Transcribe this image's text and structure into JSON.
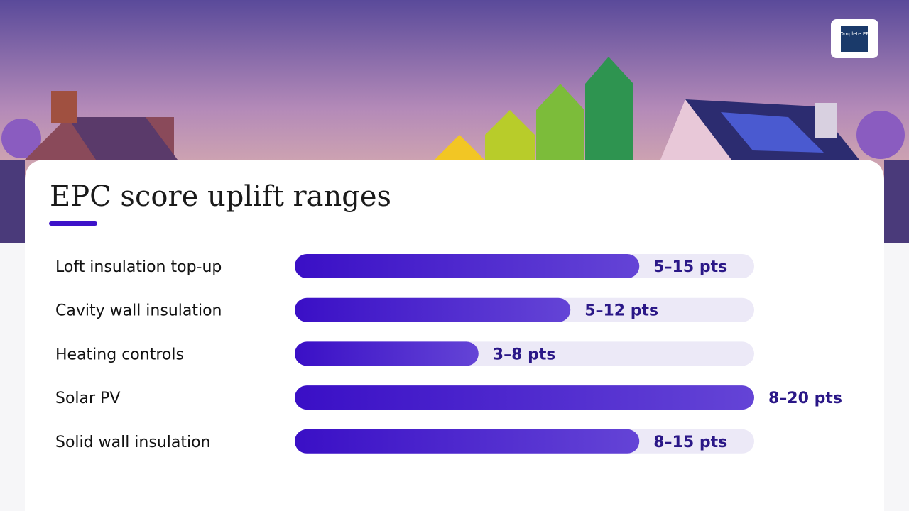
{
  "chart_data": {
    "type": "range-bar",
    "title": "EPC score uplift ranges",
    "logo": "COmplete EPC",
    "categories": [
      "Loft insulation top-up",
      "Cavity wall insulation",
      "Heating controls",
      "Solar PV",
      "Solid wall insulation"
    ],
    "values": [
      [
        5,
        15
      ],
      [
        5,
        12
      ],
      [
        3,
        8
      ],
      [
        8,
        20
      ],
      [
        8,
        15
      ]
    ],
    "value_labels": [
      "5–15 pts",
      "5–12 pts",
      "3–8 pts",
      "8–20 pts",
      "8–15 pts"
    ],
    "xlim": [
      0,
      20
    ],
    "color": "#3d12c9"
  }
}
